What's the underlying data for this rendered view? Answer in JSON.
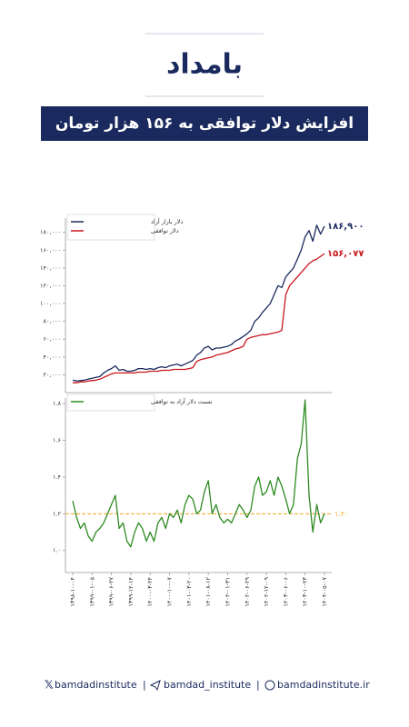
{
  "brand": "بامداد",
  "title": "افزایش دلار توافقی به ۱۵۶ هزار تومان",
  "footer": [
    "bamdadinstitute",
    "bamdad_institute",
    "bamdadinstitute.ir"
  ],
  "chart_data": [
    {
      "type": "line",
      "ylim": [
        0,
        196000
      ],
      "yticks": [
        {
          "value": 20000,
          "label": "۲۰,۰۰۰"
        },
        {
          "value": 40000,
          "label": "۴۰,۰۰۰"
        },
        {
          "value": 60000,
          "label": "۶۰,۰۰۰"
        },
        {
          "value": 80000,
          "label": "۸۰,۰۰۰"
        },
        {
          "value": 100000,
          "label": "۱۰۰,۰۰۰"
        },
        {
          "value": 120000,
          "label": "۱۲۰,۰۰۰"
        },
        {
          "value": 140000,
          "label": "۱۴۰,۰۰۰"
        },
        {
          "value": 160000,
          "label": "۱۶۰,۰۰۰"
        },
        {
          "value": 180000,
          "label": "۱۸۰,۰۰۰"
        }
      ],
      "series": [
        {
          "name": "دلار بازار آزاد",
          "color": "#1b2a5e",
          "values": [
            14000,
            13000,
            13500,
            14000,
            15000,
            16000,
            17000,
            18000,
            22000,
            25000,
            27000,
            30000,
            25000,
            26000,
            24000,
            24000,
            25000,
            27000,
            27000,
            26000,
            27000,
            26000,
            28000,
            29000,
            28000,
            30000,
            31000,
            32000,
            30000,
            32000,
            34000,
            36000,
            42000,
            45000,
            50000,
            52000,
            48000,
            50000,
            50000,
            51000,
            52000,
            54000,
            58000,
            60000,
            63000,
            66000,
            70000,
            80000,
            84000,
            90000,
            95000,
            100000,
            110000,
            120000,
            118000,
            130000,
            135000,
            140000,
            150000,
            160000,
            175000,
            182000,
            170000,
            188000,
            178000,
            186900
          ],
          "value_labels": [
            null,
            null,
            null,
            null,
            null,
            null,
            null,
            null,
            null,
            null,
            null,
            null,
            null,
            null,
            null,
            null,
            null,
            null,
            null,
            null,
            null,
            null,
            null,
            null,
            null,
            null,
            null,
            null,
            null,
            null,
            null,
            null,
            null,
            null,
            null,
            null,
            null,
            null,
            null,
            null,
            null,
            null,
            null,
            null,
            null,
            null,
            null,
            null,
            null,
            null,
            null,
            null,
            null,
            null,
            null,
            null,
            null,
            null,
            null,
            null,
            null,
            null,
            null,
            null,
            null,
            "۱۸۶,۹۰۰"
          ]
        },
        {
          "name": "دلار توافقی",
          "color": "#c8161d",
          "values": [
            11000,
            11000,
            12000,
            12000,
            13000,
            13500,
            14000,
            15000,
            17000,
            19000,
            21000,
            22000,
            22000,
            22000,
            22000,
            22000,
            22000,
            23000,
            23000,
            23000,
            24000,
            24000,
            24000,
            25000,
            25000,
            25000,
            26000,
            26000,
            26000,
            26000,
            27000,
            28000,
            35000,
            37000,
            38000,
            39000,
            40000,
            42000,
            43000,
            44000,
            45000,
            47000,
            49000,
            50000,
            52000,
            60000,
            62000,
            63000,
            64000,
            65000,
            65000,
            66000,
            67000,
            68000,
            70000,
            110000,
            120000,
            125000,
            130000,
            135000,
            140000,
            145000,
            148000,
            150000,
            153000,
            156077
          ],
          "value_labels": [
            null,
            null,
            null,
            null,
            null,
            null,
            null,
            null,
            null,
            null,
            null,
            null,
            null,
            null,
            null,
            null,
            null,
            null,
            null,
            null,
            null,
            null,
            null,
            null,
            null,
            null,
            null,
            null,
            null,
            null,
            null,
            null,
            null,
            null,
            null,
            null,
            null,
            null,
            null,
            null,
            null,
            null,
            null,
            null,
            null,
            null,
            null,
            null,
            null,
            null,
            null,
            null,
            null,
            null,
            null,
            null,
            null,
            null,
            null,
            null,
            null,
            null,
            null,
            null,
            null,
            "۱۵۶,۰۷۷"
          ]
        }
      ]
    },
    {
      "type": "line",
      "ylim": [
        0.88,
        1.83
      ],
      "yticks": [
        {
          "value": 1.0,
          "label": "۱.۰"
        },
        {
          "value": 1.2,
          "label": "۱.۲"
        },
        {
          "value": 1.4,
          "label": "۱.۴"
        },
        {
          "value": 1.6,
          "label": "۱.۶"
        },
        {
          "value": 1.8,
          "label": "۱.۸"
        }
      ],
      "categories": [
        "۱۳۹۸-۱۰-۰۴",
        null,
        null,
        null,
        null,
        "۱۳۹۹-۰۱-۰۵",
        null,
        null,
        null,
        null,
        "۱۳۹۹-۰۶-۲۷",
        null,
        null,
        null,
        null,
        "۱۳۹۹-۱۲-۱۴",
        null,
        null,
        null,
        null,
        "۱۴۰۰-۰۳-۲۴",
        null,
        null,
        null,
        null,
        "۱۴۰۰-۱۰-۰۷",
        null,
        null,
        null,
        null,
        "۱۴۰۱-۰۳-۲۰",
        null,
        null,
        null,
        null,
        "۱۴۰۱-۰۸-۱۲",
        null,
        null,
        null,
        null,
        "۱۴۰۲-۰۱-۳۱",
        null,
        null,
        null,
        null,
        "۱۴۰۲-۰۶-۲۹",
        null,
        null,
        null,
        null,
        "۱۴۰۲-۱۲-۰۹",
        null,
        null,
        null,
        null,
        "۱۴۰۳-۰۶-۰۶",
        null,
        null,
        null,
        null,
        "۱۴۰۳-۱۰-۲۳",
        null,
        null,
        null,
        null,
        "۱۴۰۴-۰۵-۰۷"
      ],
      "series": [
        {
          "name": "نسبت دلار آزاد به توافقی",
          "color": "#2e8b22",
          "values": [
            1.27,
            1.18,
            1.12,
            1.15,
            1.08,
            1.05,
            1.1,
            1.12,
            1.15,
            1.2,
            1.25,
            1.3,
            1.12,
            1.15,
            1.05,
            1.02,
            1.1,
            1.15,
            1.12,
            1.05,
            1.1,
            1.05,
            1.15,
            1.18,
            1.12,
            1.2,
            1.18,
            1.22,
            1.15,
            1.25,
            1.3,
            1.28,
            1.2,
            1.22,
            1.32,
            1.38,
            1.2,
            1.25,
            1.18,
            1.15,
            1.17,
            1.15,
            1.2,
            1.25,
            1.22,
            1.18,
            1.22,
            1.35,
            1.4,
            1.3,
            1.32,
            1.38,
            1.3,
            1.4,
            1.35,
            1.28,
            1.2,
            1.25,
            1.5,
            1.58,
            1.82,
            1.3,
            1.1,
            1.25,
            1.15,
            1.2
          ]
        }
      ],
      "ref_line": {
        "value": 1.2,
        "label": "۱.۲۰",
        "color": "#f5a623"
      }
    }
  ]
}
